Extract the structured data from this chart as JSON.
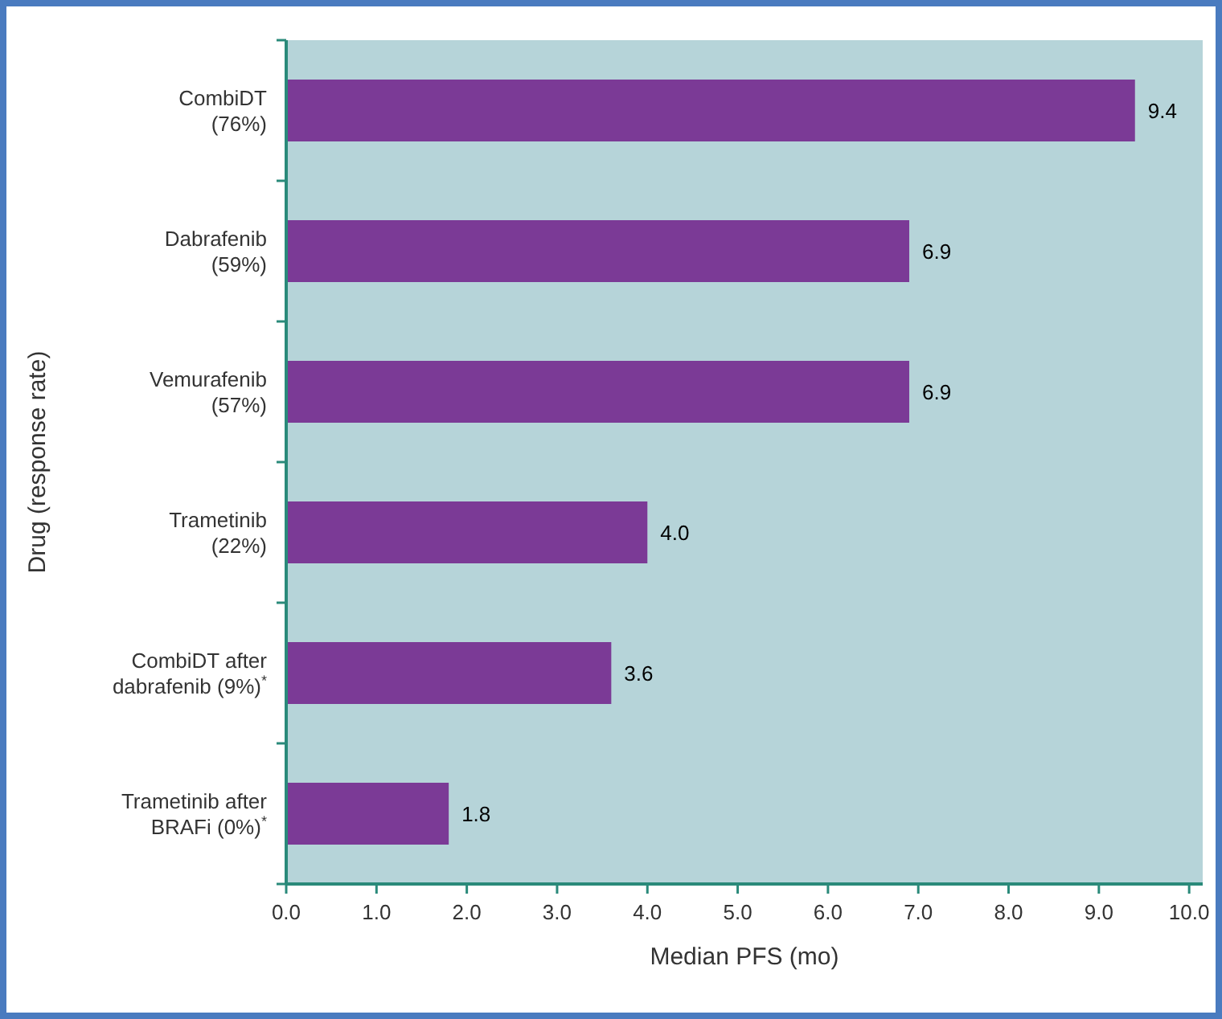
{
  "chart_data": {
    "type": "bar",
    "orientation": "horizontal",
    "xlabel": "Median PFS (mo)",
    "ylabel": "Drug (response rate)",
    "categories": [
      "CombiDT\n(76%)",
      "Dabrafenib\n(59%)",
      "Vemurafenib\n(57%)",
      "Trametinib\n(22%)",
      "CombiDT after\ndabrafenib (9%)$^{*}$",
      "Trametinib after\nBRAFi (0%)$^{*}$"
    ],
    "values": [
      9.4,
      6.9,
      6.9,
      4.0,
      3.6,
      1.8
    ],
    "color": "#7b3a96",
    "value_labels": [
      "9.4",
      "6.9",
      "6.9",
      "4.0",
      "3.6",
      "1.8"
    ],
    "grid": false,
    "xlim": [
      0,
      10.15
    ],
    "xticks": [
      {
        "value": 0,
        "label": "0.0"
      },
      {
        "value": 1,
        "label": "1.0"
      },
      {
        "value": 2,
        "label": "2.0"
      },
      {
        "value": 3,
        "label": "3.0"
      },
      {
        "value": 4,
        "label": "4.0"
      },
      {
        "value": 5,
        "label": "5.0"
      },
      {
        "value": 6,
        "label": "6.0"
      },
      {
        "value": 7,
        "label": "7.0"
      },
      {
        "value": 8,
        "label": "8.0"
      },
      {
        "value": 9,
        "label": "9.0"
      },
      {
        "value": 10,
        "label": "10.0"
      }
    ]
  }
}
